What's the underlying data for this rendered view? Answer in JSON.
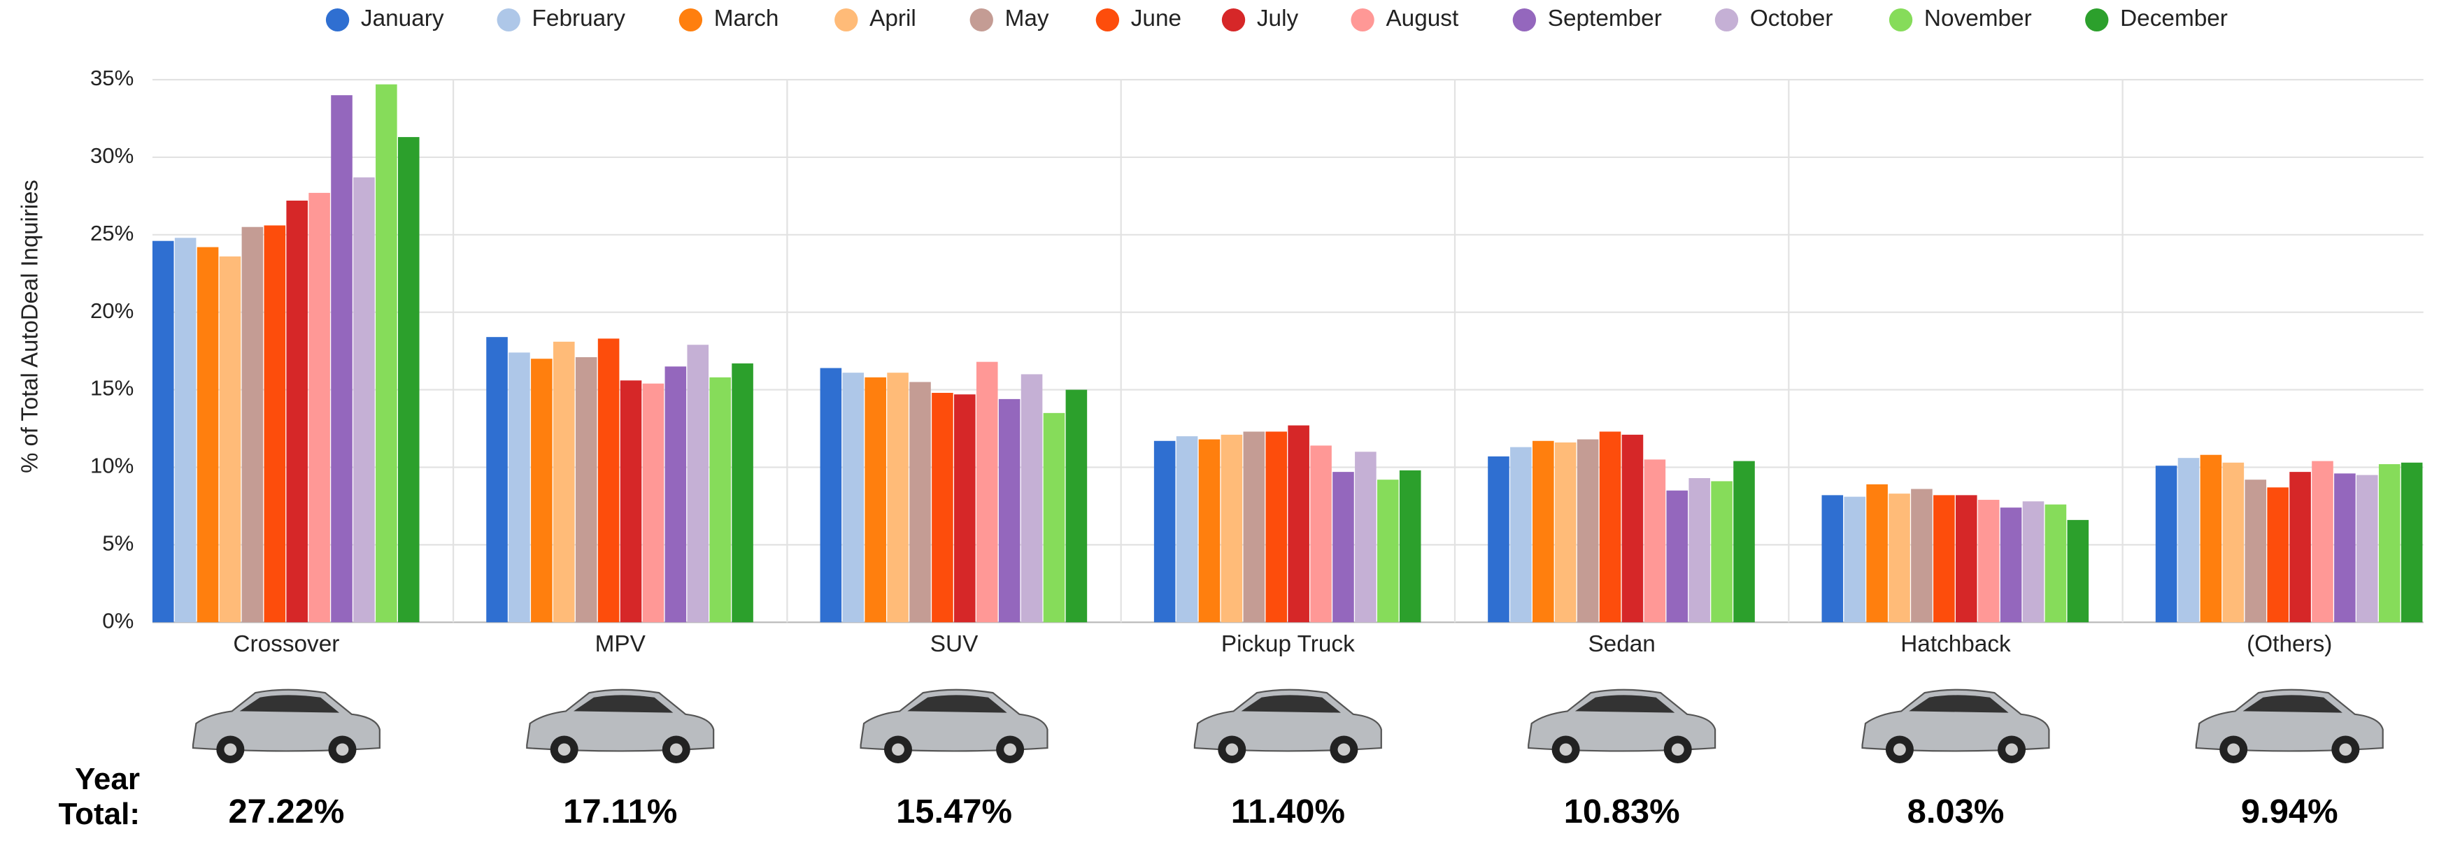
{
  "chart_data": {
    "type": "bar",
    "y_label": "% of Total AutoDeal Inquiries",
    "categories": [
      "Crossover",
      "MPV",
      "SUV",
      "Pickup Truck",
      "Sedan",
      "Hatchback",
      "(Others)"
    ],
    "series": [
      {
        "name": "January",
        "color": "#2f6fd1",
        "values": [
          24.6,
          18.4,
          16.4,
          11.7,
          10.7,
          8.2,
          10.1
        ]
      },
      {
        "name": "February",
        "color": "#aec7e8",
        "values": [
          24.8,
          17.4,
          16.1,
          12.0,
          11.3,
          8.1,
          10.6
        ]
      },
      {
        "name": "March",
        "color": "#ff7f0e",
        "values": [
          24.2,
          17.0,
          15.8,
          11.8,
          11.7,
          8.9,
          10.8
        ]
      },
      {
        "name": "April",
        "color": "#ffbb78",
        "values": [
          23.6,
          18.1,
          16.1,
          12.1,
          11.6,
          8.3,
          10.3
        ]
      },
      {
        "name": "May",
        "color": "#c49c94",
        "values": [
          25.5,
          17.1,
          15.5,
          12.3,
          11.8,
          8.6,
          9.2
        ]
      },
      {
        "name": "June",
        "color": "#fd4d0c",
        "values": [
          25.6,
          18.3,
          14.8,
          12.3,
          12.3,
          8.2,
          8.7
        ]
      },
      {
        "name": "July",
        "color": "#d62728",
        "values": [
          27.2,
          15.6,
          14.7,
          12.7,
          12.1,
          8.2,
          9.7
        ]
      },
      {
        "name": "August",
        "color": "#ff9896",
        "values": [
          27.7,
          15.4,
          16.8,
          11.4,
          10.5,
          7.9,
          10.4
        ]
      },
      {
        "name": "September",
        "color": "#9467bd",
        "values": [
          34.0,
          16.5,
          14.4,
          9.7,
          8.5,
          7.4,
          9.6
        ]
      },
      {
        "name": "October",
        "color": "#c5b0d5",
        "values": [
          28.7,
          17.9,
          16.0,
          11.0,
          9.3,
          7.8,
          9.5
        ]
      },
      {
        "name": "November",
        "color": "#86dc5a",
        "values": [
          34.7,
          15.8,
          13.5,
          9.2,
          9.1,
          7.6,
          10.2
        ]
      },
      {
        "name": "December",
        "color": "#2ca02c",
        "values": [
          31.3,
          16.7,
          15.0,
          9.8,
          10.4,
          6.6,
          10.3
        ]
      }
    ],
    "ylim": [
      0,
      35
    ],
    "yticks": [
      {
        "value": 0,
        "label": "0%"
      },
      {
        "value": 5,
        "label": "5%"
      },
      {
        "value": 10,
        "label": "10%"
      },
      {
        "value": 15,
        "label": "15%"
      },
      {
        "value": 20,
        "label": "20%"
      },
      {
        "value": 25,
        "label": "25%"
      },
      {
        "value": 30,
        "label": "30%"
      },
      {
        "value": 35,
        "label": "35%"
      }
    ],
    "grid": true,
    "legend": "top",
    "year_total_label": "Year Total:",
    "year_totals": {
      "values": [
        27.22,
        17.11,
        15.47,
        11.4,
        10.83,
        8.03,
        9.94
      ],
      "value_labels": [
        "27.22%",
        "17.11%",
        "15.47%",
        "11.40%",
        "10.83%",
        "8.03%",
        "9.94%"
      ]
    }
  }
}
